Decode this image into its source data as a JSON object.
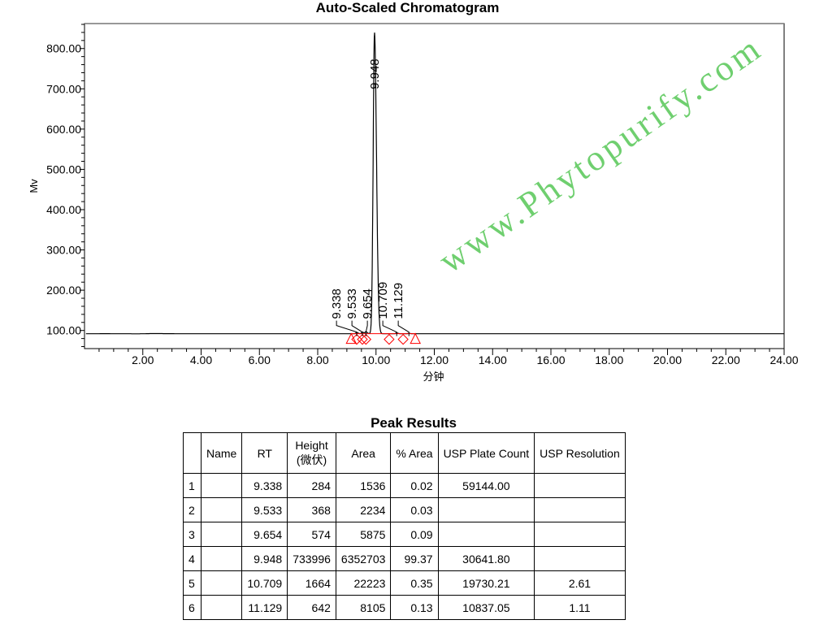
{
  "chart_data": {
    "type": "line",
    "title": "Auto-Scaled Chromatogram",
    "xlabel": "分钟",
    "ylabel": "Mv",
    "xlim": [
      0,
      24
    ],
    "ylim": [
      55,
      862
    ],
    "x_ticks": [
      "2.00",
      "4.00",
      "6.00",
      "8.00",
      "10.00",
      "12.00",
      "14.00",
      "16.00",
      "18.00",
      "20.00",
      "22.00",
      "24.00"
    ],
    "y_ticks": [
      "100.00",
      "200.00",
      "300.00",
      "400.00",
      "500.00",
      "600.00",
      "700.00",
      "800.00"
    ],
    "baseline": 92,
    "grid": false,
    "peaks": [
      {
        "rt": 9.338,
        "label": "9.338",
        "apex": 95
      },
      {
        "rt": 9.533,
        "label": "9.533",
        "apex": 96
      },
      {
        "rt": 9.654,
        "label": "9.654",
        "apex": 97
      },
      {
        "rt": 9.948,
        "label": "9.948",
        "apex": 840
      },
      {
        "rt": 10.709,
        "label": "10.709",
        "apex": 94
      },
      {
        "rt": 11.129,
        "label": "11.129",
        "apex": 93
      }
    ],
    "markers": {
      "color": "#ff0000",
      "diamonds": [
        9.338,
        9.533,
        9.654,
        10.45,
        10.93
      ],
      "triangles": [
        9.15,
        11.35
      ]
    }
  },
  "table": {
    "title": "Peak Results",
    "headers": [
      "",
      "Name",
      "RT",
      "Height\n(微伏)",
      "Area",
      "% Area",
      "USP Plate Count",
      "USP Resolution"
    ],
    "rows": [
      [
        "1",
        "",
        "9.338",
        "284",
        "1536",
        "0.02",
        "59144.00",
        ""
      ],
      [
        "2",
        "",
        "9.533",
        "368",
        "2234",
        "0.03",
        "",
        ""
      ],
      [
        "3",
        "",
        "9.654",
        "574",
        "5875",
        "0.09",
        "",
        ""
      ],
      [
        "4",
        "",
        "9.948",
        "733996",
        "6352703",
        "99.37",
        "30641.80",
        ""
      ],
      [
        "5",
        "",
        "10.709",
        "1664",
        "22223",
        "0.35",
        "19730.21",
        "2.61"
      ],
      [
        "6",
        "",
        "11.129",
        "642",
        "8105",
        "0.13",
        "10837.05",
        "1.11"
      ]
    ]
  },
  "watermark": "www.Phytopurify.com"
}
